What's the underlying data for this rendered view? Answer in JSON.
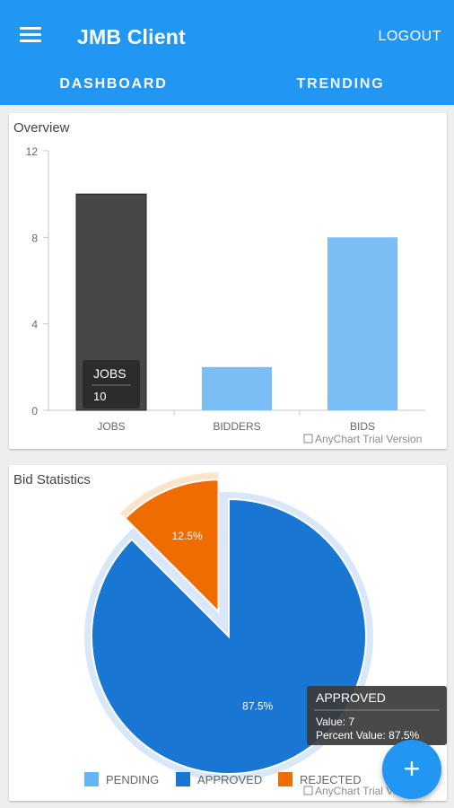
{
  "app": {
    "title": "JMB Client",
    "menu_icon": "menu-icon",
    "logout_label": "LOGOUT",
    "primary_color": "#2196f3"
  },
  "tabs": [
    {
      "label": "DASHBOARD",
      "active": true
    },
    {
      "label": "TRENDING",
      "active": false
    }
  ],
  "overview": {
    "title": "Overview",
    "watermark": "AnyChart Trial Version",
    "tooltip": {
      "title": "JOBS",
      "value": "10"
    }
  },
  "bid_stats": {
    "title": "Bid Statistics",
    "watermark": "AnyChart Trial Version",
    "tooltip": {
      "title": "APPROVED",
      "value_line": "Value: 7",
      "percent_line": "Percent Value: 87.5%"
    }
  },
  "fab": {
    "icon": "plus-icon",
    "label": "+"
  },
  "chart_data": [
    {
      "type": "bar",
      "title": "Overview",
      "categories": [
        "JOBS",
        "BIDDERS",
        "BIDS"
      ],
      "values": [
        10,
        2,
        8
      ],
      "ylim": [
        0,
        12
      ],
      "yticks": [
        "0",
        "4",
        "8",
        "12"
      ],
      "colors": [
        "#474747",
        "#7bbdf5",
        "#7bbdf5"
      ],
      "grid": false
    },
    {
      "type": "pie",
      "title": "Bid Statistics",
      "slices": [
        {
          "label": "PENDING",
          "value": 0,
          "color": "#64b5f6"
        },
        {
          "label": "APPROVED",
          "value": 7,
          "percent": "87.5%",
          "color": "#1976d2"
        },
        {
          "label": "REJECTED",
          "value": 1,
          "percent": "12.5%",
          "color": "#ef6c00"
        }
      ],
      "legend": "bottom"
    }
  ]
}
